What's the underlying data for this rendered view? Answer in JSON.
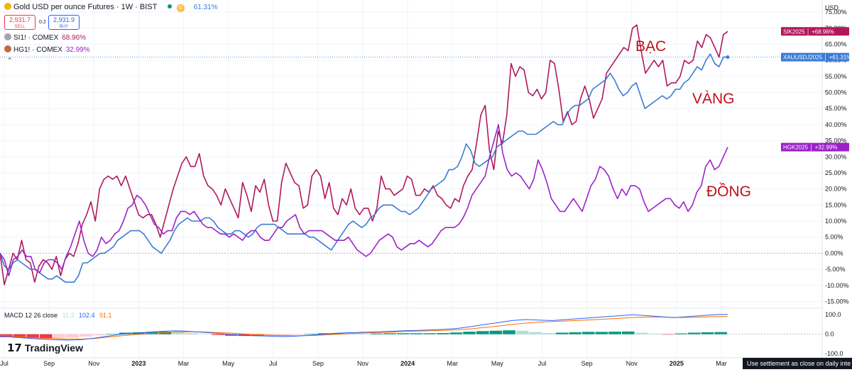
{
  "header": {
    "title": "Gold USD per ounce Futures · 1W · BIST",
    "d_badge": "D",
    "title_change": "61.31%",
    "sell_price": "2,931.7",
    "sell_label": "SELL",
    "spread": "0.2",
    "buy_price": "2,931.9",
    "buy_label": "BUY",
    "series2_name": "SI1! · COMEX",
    "series2_change": "68.96%",
    "series3_name": "HG1! · COMEX",
    "series3_change": "32.99%"
  },
  "macd": {
    "label": "MACD 12 26 close",
    "v1": "11.3",
    "v2": "102.4",
    "v3": "91.1"
  },
  "branding": {
    "logo": "TradingView"
  },
  "footer": {
    "note": "Use settlement as close on daily inte"
  },
  "colors": {
    "silver": "#b0185a",
    "gold": "#3a7bd5",
    "copper": "#9b22c9",
    "annotation": "#c0101a",
    "grid": "#f0f3fa",
    "axis_text": "#131722"
  },
  "chart_data": {
    "type": "line",
    "axis_unit": "USD",
    "x_ticks": [
      "Jul",
      "Sep",
      "Nov",
      "2023",
      "Mar",
      "May",
      "Jul",
      "Sep",
      "Nov",
      "2024",
      "Mar",
      "May",
      "Jul",
      "Sep",
      "Nov",
      "2025",
      "Mar"
    ],
    "y_ticks": [
      "75.00%",
      "70.00%",
      "65.00%",
      "60.00%",
      "55.00%",
      "50.00%",
      "45.00%",
      "40.00%",
      "35.00%",
      "30.00%",
      "25.00%",
      "20.00%",
      "15.00%",
      "10.00%",
      "5.00%",
      "0.00%",
      "-5.00%",
      "-10.00%",
      "-15.00%"
    ],
    "ylim": [
      -16,
      77
    ],
    "series": [
      {
        "name": "SIK2025",
        "last_label": "+68.96%",
        "color": "#b0185a",
        "values": [
          0,
          -9.8,
          -5,
          0,
          -2,
          4,
          -2,
          -3,
          -9,
          -4,
          -2,
          -3,
          -5,
          -1,
          -7,
          -2,
          0,
          -1,
          3,
          9,
          12,
          16,
          10,
          20,
          23,
          24,
          23,
          24,
          21,
          24,
          20,
          16,
          12,
          11,
          12,
          12,
          9,
          5,
          10,
          15,
          20,
          24,
          28,
          30,
          27,
          27,
          31,
          24,
          21,
          20,
          18,
          15,
          20,
          17,
          14,
          11,
          22,
          18,
          13,
          21,
          19,
          23,
          15,
          10,
          10,
          22,
          28,
          25,
          22,
          21,
          14,
          15,
          24,
          26,
          24,
          17,
          22,
          14,
          12,
          17,
          15,
          20,
          14,
          12,
          14,
          14,
          10,
          14,
          24,
          20,
          20,
          18,
          19,
          20,
          24,
          23,
          18,
          18,
          20,
          19,
          21,
          18,
          17,
          15,
          14,
          17,
          16,
          21,
          24,
          26,
          34,
          43,
          46,
          32,
          26,
          38,
          34,
          43,
          59,
          55,
          58,
          57,
          50,
          49,
          51,
          48,
          50,
          60,
          59,
          51,
          41,
          44,
          40,
          41,
          48,
          52,
          48,
          42,
          45,
          48,
          56,
          58,
          60,
          62,
          64,
          63,
          70,
          71,
          63,
          56,
          58,
          60,
          58,
          60,
          52,
          53,
          53,
          55,
          60,
          59,
          60,
          66,
          64,
          68,
          67,
          64,
          61,
          68,
          69
        ],
        "annotation": "BẠC"
      },
      {
        "name": "XAUUSDJ2025",
        "last_label": "+61.31%",
        "color": "#3a7bd5",
        "values": [
          0,
          -4,
          -5,
          -3,
          -2,
          -3,
          -4,
          -5,
          -5,
          -6,
          -7,
          -8,
          -8,
          -7,
          -8,
          -9,
          -9,
          -9,
          -7,
          -3,
          -3,
          -2,
          -1,
          0,
          0,
          1,
          2,
          4,
          5,
          6,
          7,
          7,
          7,
          6,
          4,
          2,
          1,
          0,
          2,
          4,
          7,
          9,
          10,
          11,
          10,
          10,
          10,
          11,
          11,
          10,
          8,
          7,
          6,
          6,
          7,
          7,
          6,
          5,
          6,
          8,
          9,
          9,
          9,
          9,
          8,
          7,
          6,
          6,
          6,
          6,
          6,
          5,
          5,
          4,
          3,
          2,
          1,
          3,
          5,
          7,
          9,
          10,
          9,
          8,
          9,
          11,
          12,
          14,
          15,
          15,
          15,
          14,
          13,
          13,
          12,
          13,
          14,
          16,
          18,
          20,
          21,
          22,
          23,
          26,
          26,
          27,
          30,
          34,
          32,
          28,
          27,
          28,
          29,
          30,
          33,
          34,
          35,
          36,
          37,
          38,
          38,
          37,
          37,
          37,
          38,
          39,
          40,
          41,
          40,
          40,
          43,
          45,
          46,
          46,
          47,
          48,
          51,
          52,
          53,
          54,
          56,
          54,
          51,
          49,
          50,
          52,
          53,
          49,
          45,
          46,
          47,
          48,
          49,
          48,
          49,
          51,
          51,
          53,
          54,
          56,
          58,
          57,
          60,
          62,
          59,
          58,
          61,
          61
        ],
        "annotation": "VÀNG"
      },
      {
        "name": "HGK2025",
        "last_label": "+32.99%",
        "color": "#9b22c9",
        "values": [
          0,
          -2,
          -7,
          -2,
          -1,
          1,
          -1,
          -1,
          -5,
          -6,
          -3,
          -2,
          -2,
          -3,
          -5,
          -1,
          2,
          6,
          10,
          4,
          0,
          -1,
          1,
          5,
          3,
          4,
          6,
          7,
          10,
          14,
          15,
          18,
          17,
          15,
          12,
          9,
          8,
          6,
          7,
          7,
          11,
          13,
          13,
          12,
          13,
          11,
          9,
          8,
          8,
          7,
          6,
          6,
          5,
          6,
          5,
          4,
          6,
          7,
          7,
          5,
          4,
          4,
          6,
          8,
          8,
          10,
          11,
          12,
          8,
          6,
          7,
          7,
          7,
          7,
          6,
          5,
          4,
          4,
          4,
          5,
          3,
          1,
          0,
          -1,
          0,
          2,
          4,
          5,
          6,
          5,
          2,
          1,
          2,
          3,
          3,
          4,
          3,
          2,
          3,
          5,
          7,
          8,
          8,
          8,
          9,
          11,
          14,
          18,
          20,
          22,
          24,
          30,
          35,
          40,
          31,
          26,
          24,
          25,
          24,
          22,
          20,
          23,
          29,
          26,
          22,
          17,
          15,
          13,
          13,
          15,
          17,
          15,
          13,
          17,
          21,
          23,
          27,
          26,
          24,
          20,
          17,
          20,
          18,
          21,
          21,
          20,
          16,
          13,
          14,
          15,
          16,
          17,
          17,
          15,
          14,
          16,
          13,
          15,
          19,
          21,
          27,
          29,
          26,
          27,
          30,
          33
        ],
        "annotation": "ĐỒNG"
      }
    ],
    "macd_ticks": [
      "100.0",
      "0.0",
      "-100.0"
    ],
    "macd_ylim": [
      -110,
      115
    ],
    "macd_line": [
      -10,
      -15,
      -20,
      -25,
      -28,
      -30,
      -28,
      -20,
      -10,
      0,
      5,
      10,
      15,
      18,
      15,
      10,
      5,
      0,
      -5,
      -8,
      -10,
      -12,
      -10,
      -5,
      0,
      5,
      8,
      10,
      12,
      15,
      18,
      20,
      22,
      25,
      30,
      40,
      50,
      60,
      70,
      75,
      72,
      70,
      75,
      80,
      85,
      90,
      95,
      100,
      95,
      90,
      85,
      90,
      95,
      100,
      102
    ],
    "macd_signal": [
      -5,
      -10,
      -15,
      -20,
      -22,
      -25,
      -25,
      -22,
      -15,
      -8,
      -2,
      3,
      8,
      12,
      13,
      12,
      9,
      6,
      2,
      -2,
      -5,
      -7,
      -8,
      -7,
      -4,
      0,
      4,
      7,
      9,
      11,
      14,
      16,
      18,
      20,
      23,
      28,
      35,
      42,
      50,
      57,
      62,
      65,
      68,
      71,
      74,
      78,
      82,
      86,
      88,
      88,
      86,
      86,
      88,
      90,
      91
    ],
    "macd_hist": [
      -15,
      -18,
      -20,
      -22,
      -20,
      -18,
      -12,
      -6,
      2,
      8,
      10,
      12,
      13,
      12,
      6,
      1,
      -4,
      -8,
      -9,
      -9,
      -8,
      -6,
      -3,
      2,
      5,
      6,
      5,
      4,
      4,
      5,
      5,
      5,
      5,
      6,
      9,
      13,
      16,
      18,
      20,
      18,
      11,
      6,
      8,
      10,
      12,
      12,
      13,
      14,
      8,
      3,
      -2,
      4,
      8,
      10,
      11
    ]
  }
}
